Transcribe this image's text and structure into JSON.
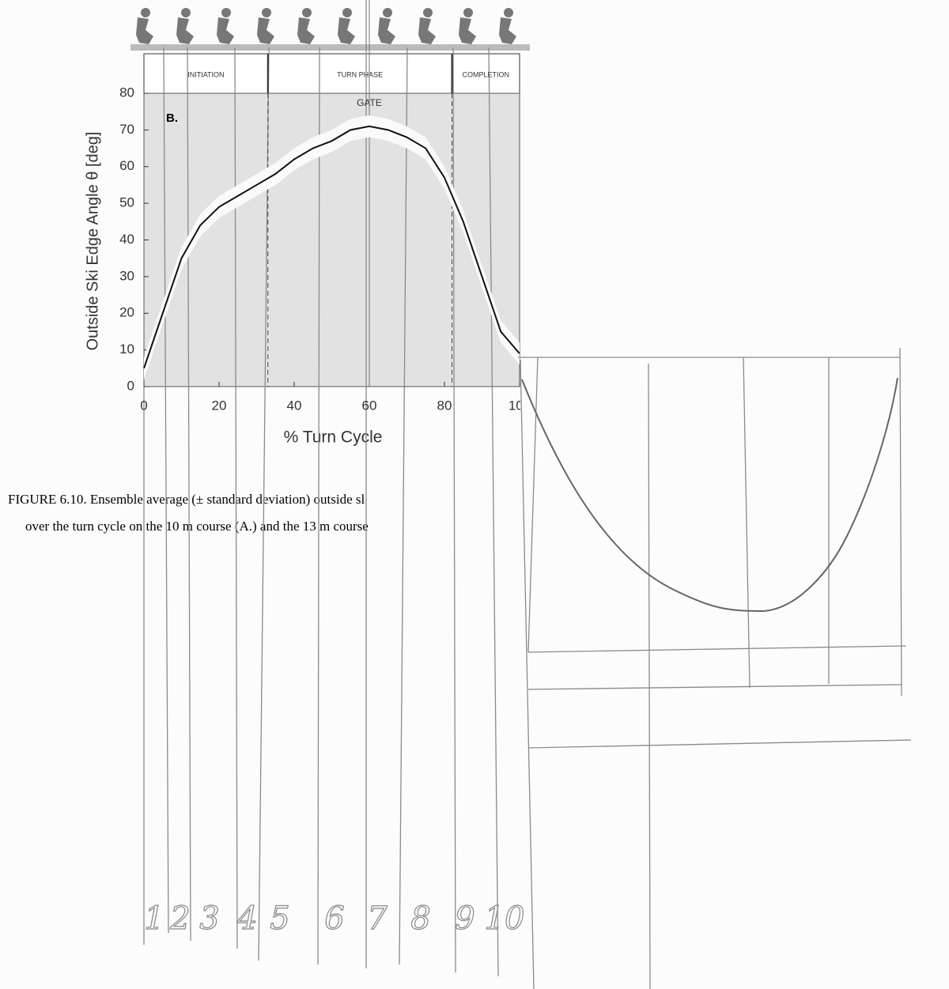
{
  "chart_data": {
    "type": "line",
    "subtitle": "B.",
    "xlabel": "% Turn Cycle",
    "ylabel": "Outside Ski Edge Angle θ [deg]",
    "x": [
      0,
      5,
      10,
      15,
      20,
      25,
      30,
      35,
      40,
      45,
      50,
      55,
      60,
      65,
      70,
      75,
      80,
      85,
      90,
      95,
      100
    ],
    "values": [
      5,
      20,
      35,
      44,
      49,
      52,
      55,
      58,
      62,
      65,
      67,
      70,
      71,
      70,
      68,
      65,
      57,
      45,
      30,
      15,
      9
    ],
    "std": [
      3,
      3,
      3,
      3,
      3,
      3,
      3,
      3,
      3,
      3,
      3,
      3,
      3,
      3,
      3,
      3,
      3,
      3,
      3,
      3,
      3
    ],
    "color": "#111111",
    "xlim": [
      0,
      100
    ],
    "ylim": [
      0,
      80
    ],
    "xticks": [
      0,
      20,
      40,
      60,
      80,
      100
    ],
    "yticks": [
      0,
      10,
      20,
      30,
      40,
      50,
      60,
      70,
      80
    ],
    "phases": [
      "INITIATION",
      "TURN PHASE",
      "COMPLETION"
    ],
    "phase_bounds": [
      33,
      82
    ],
    "gate_label": "GATE",
    "gate": 60
  },
  "caption": [
    "FIGURE 6.10.  Ensemble average (± standard deviation) outside sl",
    "over the turn cycle on the 10 m course (A.) and the 13 m course"
  ],
  "handwritten_labels": [
    "1",
    "2",
    "3",
    "4",
    "5",
    "6",
    "7",
    "8",
    "9",
    "10"
  ]
}
